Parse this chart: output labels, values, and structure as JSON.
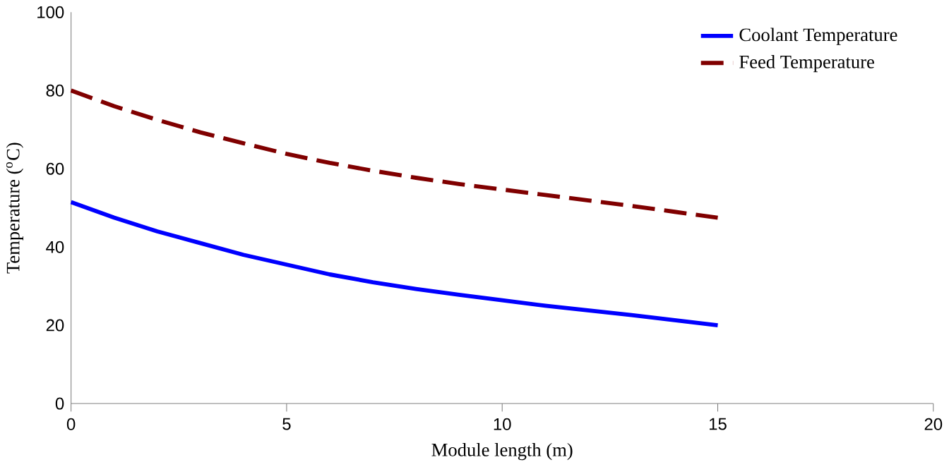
{
  "chart_data": {
    "type": "line",
    "xlabel": "Module length (m)",
    "ylabel": "Temperature ($^{o}$C)",
    "xlim": [
      0,
      20
    ],
    "xticks": [
      0,
      5,
      10,
      15,
      20
    ],
    "ylim": [
      0,
      100
    ],
    "yticks": [
      0,
      20,
      40,
      60,
      80,
      100
    ],
    "x": [
      0,
      1,
      2,
      3,
      4,
      5,
      6,
      7,
      8,
      9,
      10,
      11,
      12,
      13,
      14,
      15
    ],
    "series": [
      {
        "name": "Coolant Temperature",
        "color": "#0000ff",
        "line_style": "solid",
        "values": [
          51.5,
          47.5,
          44,
          41,
          38,
          35.5,
          33,
          31,
          29.3,
          27.8,
          26.4,
          25,
          23.8,
          22.6,
          21.3,
          20
        ]
      },
      {
        "name": "Feed Temperature",
        "color": "#800000",
        "line_style": "dashed",
        "values": [
          80,
          76,
          72.5,
          69.3,
          66.5,
          63.8,
          61.5,
          59.5,
          57.7,
          56.1,
          54.7,
          53.3,
          51.9,
          50.5,
          49,
          47.5
        ]
      }
    ],
    "legend": "top right",
    "grid": false,
    "marker": "none"
  }
}
